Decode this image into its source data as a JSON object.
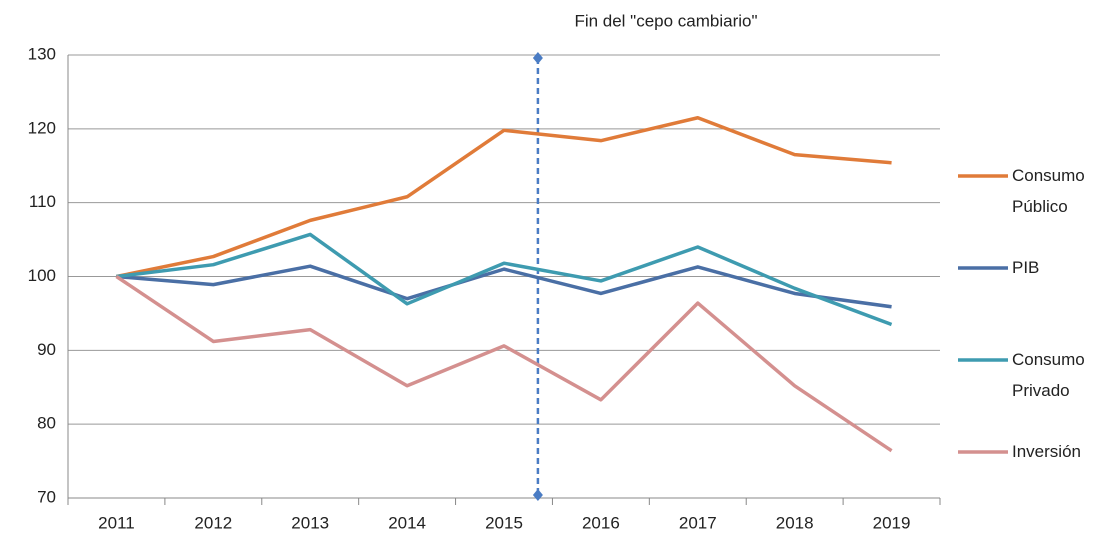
{
  "chart_data": {
    "type": "line",
    "annotation": {
      "text": "Fin del \"cepo cambiario\"",
      "x": 2015.35,
      "color": "#4a7cc4"
    },
    "x": [
      2011,
      2012,
      2013,
      2014,
      2015,
      2016,
      2017,
      2018,
      2019
    ],
    "xlim": [
      2010.5,
      2019.5
    ],
    "xticks": [
      2011,
      2012,
      2013,
      2014,
      2015,
      2016,
      2017,
      2018,
      2019
    ],
    "ylim": [
      70,
      130
    ],
    "yticks": [
      70,
      80,
      90,
      100,
      110,
      120,
      130
    ],
    "grid": true,
    "legend": "right",
    "series": [
      {
        "name": "Consumo Público",
        "color": "#e07b39",
        "values": [
          100,
          102.7,
          107.6,
          110.8,
          119.8,
          118.4,
          121.5,
          116.5,
          115.4
        ]
      },
      {
        "name": "PIB",
        "color": "#4a6fa5",
        "values": [
          100,
          98.9,
          101.4,
          97.0,
          101.0,
          97.7,
          101.3,
          97.7,
          95.9
        ]
      },
      {
        "name": "Consumo Privado",
        "color": "#3e9bb0",
        "values": [
          100,
          101.6,
          105.7,
          96.3,
          101.8,
          99.4,
          104.0,
          98.4,
          93.5
        ]
      },
      {
        "name": "Inversión",
        "color": "#d4908f",
        "values": [
          100,
          91.2,
          92.8,
          85.2,
          90.6,
          83.3,
          96.4,
          85.2,
          76.4
        ]
      }
    ]
  }
}
